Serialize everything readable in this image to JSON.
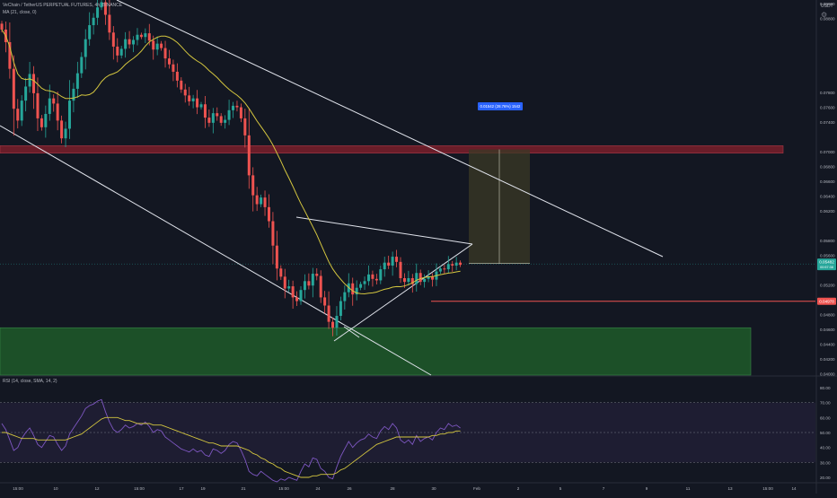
{
  "header": {
    "symbol_line": "VeChain / TetherUS PERPETUAL FUTURES, 4h, BINANCE",
    "ma_line": "MA (21, close, 0)",
    "rsi_line": "RSI (14, close, SMA, 14, 2)",
    "currency": "USDT"
  },
  "colors": {
    "background": "#131722",
    "bull": "#26a69a",
    "bear": "#ef5350",
    "ma": "#d4c63f",
    "rsi_line": "#7e57c2",
    "rsi_ma": "#d4c63f",
    "resistance_zone": "#7a1f2b",
    "support_zone": "#1e5a2a",
    "trendline": "#e0e3eb",
    "target_box": "#3b3a26",
    "price_badge": "#26a69a",
    "level_badge": "#ef5350",
    "measure_badge": "#2962ff"
  },
  "price_axis": {
    "ticks": [
      "0.09000",
      "0.08800",
      "0.07800",
      "0.07600",
      "0.07400",
      "0.07000",
      "0.06800",
      "0.06600",
      "0.06400",
      "0.06200",
      "0.05800",
      "0.05600",
      "0.05200",
      "0.04800",
      "0.04600",
      "0.04400",
      "0.04200",
      "0.04000"
    ],
    "current_price": "0.05482",
    "countdown": "00:57:38",
    "level_label": "0.04978"
  },
  "rsi_axis": {
    "ticks": [
      "80.00",
      "70.00",
      "60.00",
      "50.00",
      "40.00",
      "30.00",
      "20.00"
    ]
  },
  "time_axis": {
    "labels": [
      "15:00",
      "10",
      "12",
      "15:00",
      "17",
      "19",
      "21",
      "15:00",
      "24",
      "26",
      "28",
      "30",
      "Feb",
      "2",
      "5",
      "7",
      "9",
      "11",
      "13",
      "15:00",
      "14"
    ]
  },
  "measure_label": "0.01542 (28.76%) 1542",
  "chart_data": [
    {
      "type": "candlestick",
      "title": "VeChain / TetherUS PERPETUAL FUTURES, 4h, BINANCE",
      "ylabel": "USDT",
      "ylim": [
        0.0398,
        0.0905
      ],
      "series": [
        {
          "name": "VET/USDT 4h (approximate closes)",
          "values": [
            0.0865,
            0.0848,
            0.0812,
            0.0758,
            0.0742,
            0.0769,
            0.0788,
            0.0805,
            0.0779,
            0.0745,
            0.0733,
            0.0751,
            0.0772,
            0.0765,
            0.0742,
            0.0718,
            0.0731,
            0.0769,
            0.0785,
            0.0806,
            0.0828,
            0.0852,
            0.0871,
            0.0881,
            0.0895,
            0.0902,
            0.0885,
            0.0861,
            0.0842,
            0.083,
            0.0839,
            0.0852,
            0.0845,
            0.0851,
            0.0858,
            0.0855,
            0.086,
            0.085,
            0.0838,
            0.0846,
            0.084,
            0.0826,
            0.0818,
            0.0808,
            0.0796,
            0.0784,
            0.0776,
            0.0768,
            0.0772,
            0.076,
            0.0764,
            0.0746,
            0.0739,
            0.0752,
            0.0748,
            0.0739,
            0.0743,
            0.0756,
            0.0762,
            0.076,
            0.0745,
            0.0722,
            0.0668,
            0.0641,
            0.0629,
            0.0638,
            0.0625,
            0.0606,
            0.0573,
            0.0542,
            0.0531,
            0.0515,
            0.0518,
            0.0503,
            0.0498,
            0.0513,
            0.0525,
            0.0519,
            0.0535,
            0.0532,
            0.0503,
            0.0492,
            0.047,
            0.0462,
            0.0478,
            0.0498,
            0.051,
            0.0522,
            0.0507,
            0.0516,
            0.0521,
            0.0525,
            0.0534,
            0.0528,
            0.0526,
            0.0541,
            0.055,
            0.0546,
            0.0558,
            0.0551,
            0.0529,
            0.0524,
            0.0529,
            0.0521,
            0.0536,
            0.0524,
            0.0528,
            0.0531,
            0.0527,
            0.0538,
            0.0542,
            0.0541,
            0.0548,
            0.0546,
            0.055,
            0.0547
          ]
        }
      ],
      "moving_average": {
        "name": "MA (21, close, 0)",
        "period": 21
      },
      "annotations": {
        "resistance_zone": [
          0.0708,
          0.0698
        ],
        "support_zone": [
          0.0462,
          0.0398
        ],
        "horizontal_level": 0.04978,
        "long_position": {
          "entry": 0.05488,
          "target": 0.0703,
          "change": "0.01542 (28.76%) 1542"
        }
      }
    },
    {
      "type": "line",
      "title": "RSI (14, close, SMA, 14, 2)",
      "ylim": [
        20,
        80
      ],
      "bands": [
        30,
        70
      ],
      "series": [
        {
          "name": "RSI (approximate)",
          "values": [
            56,
            52,
            45,
            38,
            40,
            46,
            50,
            53,
            48,
            42,
            40,
            44,
            48,
            47,
            42,
            38,
            41,
            49,
            53,
            57,
            61,
            66,
            68,
            69,
            71,
            72,
            64,
            57,
            52,
            50,
            52,
            55,
            53,
            54,
            56,
            55,
            57,
            54,
            50,
            52,
            51,
            47,
            45,
            43,
            41,
            39,
            38,
            37,
            39,
            37,
            38,
            35,
            34,
            39,
            38,
            36,
            38,
            42,
            44,
            43,
            38,
            32,
            24,
            22,
            21,
            24,
            22,
            20,
            18,
            17,
            19,
            18,
            20,
            19,
            18,
            24,
            29,
            27,
            33,
            32,
            26,
            24,
            20,
            19,
            27,
            34,
            39,
            44,
            40,
            43,
            45,
            46,
            49,
            47,
            46,
            51,
            54,
            52,
            56,
            53,
            45,
            43,
            45,
            42,
            48,
            44,
            46,
            47,
            45,
            50,
            53,
            52,
            56,
            54,
            55,
            53
          ]
        },
        {
          "name": "RSI MA (approximate)",
          "values": [
            50,
            50,
            49,
            48,
            47,
            46,
            46,
            46,
            46,
            45,
            45,
            45,
            45,
            45,
            45,
            45,
            45,
            46,
            47,
            48,
            49,
            51,
            53,
            55,
            57,
            59,
            60,
            60,
            60,
            60,
            59,
            58,
            58,
            57,
            56,
            56,
            56,
            56,
            55,
            55,
            55,
            54,
            53,
            52,
            51,
            50,
            49,
            48,
            47,
            46,
            45,
            44,
            43,
            43,
            42,
            41,
            41,
            41,
            41,
            41,
            40,
            39,
            38,
            36,
            35,
            33,
            32,
            30,
            29,
            27,
            26,
            24,
            23,
            22,
            21,
            20,
            20,
            20,
            21,
            21,
            22,
            22,
            22,
            22,
            23,
            25,
            26,
            28,
            30,
            32,
            34,
            36,
            38,
            40,
            42,
            43,
            44,
            45,
            46,
            47,
            47,
            47,
            47,
            47,
            47,
            47,
            47,
            47,
            48,
            48,
            49,
            49,
            50,
            50,
            51,
            51
          ]
        }
      ]
    }
  ]
}
